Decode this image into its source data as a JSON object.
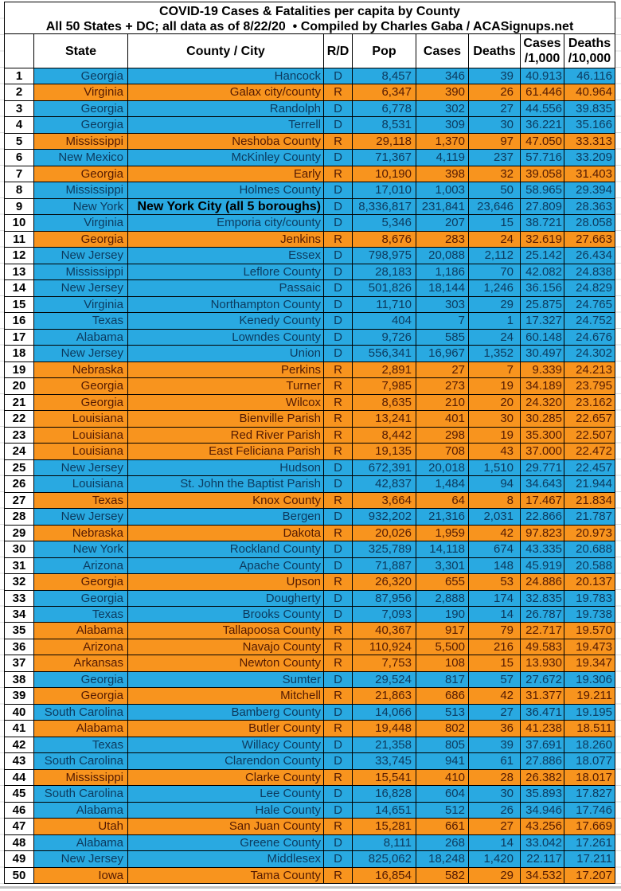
{
  "title": "COVID-19 Cases & Fatalities per capita by County",
  "subtitle": "All 50 States + DC; all data as of 8/22/20  • Compiled by Charles Gaba / ACASignups.net",
  "header": {
    "rank": "",
    "state": "State",
    "county": "County / City",
    "party": "R/D",
    "pop": "Pop",
    "cases": "Cases",
    "deaths": "Deaths",
    "cases_per_1000_line1": "Cases",
    "cases_per_1000_line2": "/1,000",
    "deaths_per_10000_line1": "Deaths",
    "deaths_per_10000_line2": "/10,000"
  },
  "colors": {
    "dem_bg": "#29a9e1",
    "rep_bg": "#f8941e",
    "dem_text": "#0c3a5e",
    "rep_text": "#541a02",
    "grid_line": "#000000",
    "sheet_tick": "#dcdcdc",
    "bottom_edge": "#c2c2c2"
  },
  "chart_data": {
    "type": "table",
    "title": "COVID-19 Cases & Fatalities per capita by County",
    "subtitle": "All 50 States + DC; all data as of 8/22/20  • Compiled by Charles Gaba / ACASignups.net",
    "columns": [
      "",
      "State",
      "County / City",
      "R/D",
      "Pop",
      "Cases",
      "Deaths",
      "Cases /1,000",
      "Deaths /10,000"
    ],
    "row_color_rule": "R/D = D rows are blue, R/D = R rows are orange",
    "rows": [
      {
        "rank": "1",
        "state": "Georgia",
        "county": "Hancock",
        "party": "D",
        "pop": "8,457",
        "cases": "346",
        "deaths": "39",
        "cases_per_1000": "40.913",
        "deaths_per_10000": "46.116"
      },
      {
        "rank": "2",
        "state": "Virginia",
        "county": "Galax city/county",
        "party": "R",
        "pop": "6,347",
        "cases": "390",
        "deaths": "26",
        "cases_per_1000": "61.446",
        "deaths_per_10000": "40.964"
      },
      {
        "rank": "3",
        "state": "Georgia",
        "county": "Randolph",
        "party": "D",
        "pop": "6,778",
        "cases": "302",
        "deaths": "27",
        "cases_per_1000": "44.556",
        "deaths_per_10000": "39.835"
      },
      {
        "rank": "4",
        "state": "Georgia",
        "county": "Terrell",
        "party": "D",
        "pop": "8,531",
        "cases": "309",
        "deaths": "30",
        "cases_per_1000": "36.221",
        "deaths_per_10000": "35.166"
      },
      {
        "rank": "5",
        "state": "Mississippi",
        "county": "Neshoba County",
        "party": "R",
        "pop": "29,118",
        "cases": "1,370",
        "deaths": "97",
        "cases_per_1000": "47.050",
        "deaths_per_10000": "33.313"
      },
      {
        "rank": "6",
        "state": "New Mexico",
        "county": "McKinley County",
        "party": "D",
        "pop": "71,367",
        "cases": "4,119",
        "deaths": "237",
        "cases_per_1000": "57.716",
        "deaths_per_10000": "33.209"
      },
      {
        "rank": "7",
        "state": "Georgia",
        "county": "Early",
        "party": "R",
        "pop": "10,190",
        "cases": "398",
        "deaths": "32",
        "cases_per_1000": "39.058",
        "deaths_per_10000": "31.403"
      },
      {
        "rank": "8",
        "state": "Mississippi",
        "county": "Holmes County",
        "party": "D",
        "pop": "17,010",
        "cases": "1,003",
        "deaths": "50",
        "cases_per_1000": "58.965",
        "deaths_per_10000": "29.394"
      },
      {
        "rank": "9",
        "state": "New York",
        "county": "New York City (all 5 boroughs)",
        "party": "D",
        "pop": "8,336,817",
        "cases": "231,841",
        "deaths": "23,646",
        "cases_per_1000": "27.809",
        "deaths_per_10000": "28.363",
        "county_bold": true
      },
      {
        "rank": "10",
        "state": "Virginia",
        "county": "Emporia city/county",
        "party": "D",
        "pop": "5,346",
        "cases": "207",
        "deaths": "15",
        "cases_per_1000": "38.721",
        "deaths_per_10000": "28.058"
      },
      {
        "rank": "11",
        "state": "Georgia",
        "county": "Jenkins",
        "party": "R",
        "pop": "8,676",
        "cases": "283",
        "deaths": "24",
        "cases_per_1000": "32.619",
        "deaths_per_10000": "27.663"
      },
      {
        "rank": "12",
        "state": "New Jersey",
        "county": "Essex",
        "party": "D",
        "pop": "798,975",
        "cases": "20,088",
        "deaths": "2,112",
        "cases_per_1000": "25.142",
        "deaths_per_10000": "26.434"
      },
      {
        "rank": "13",
        "state": "Mississippi",
        "county": "Leflore County",
        "party": "D",
        "pop": "28,183",
        "cases": "1,186",
        "deaths": "70",
        "cases_per_1000": "42.082",
        "deaths_per_10000": "24.838"
      },
      {
        "rank": "14",
        "state": "New Jersey",
        "county": "Passaic",
        "party": "D",
        "pop": "501,826",
        "cases": "18,144",
        "deaths": "1,246",
        "cases_per_1000": "36.156",
        "deaths_per_10000": "24.829"
      },
      {
        "rank": "15",
        "state": "Virginia",
        "county": "Northampton County",
        "party": "D",
        "pop": "11,710",
        "cases": "303",
        "deaths": "29",
        "cases_per_1000": "25.875",
        "deaths_per_10000": "24.765"
      },
      {
        "rank": "16",
        "state": "Texas",
        "county": "Kenedy County",
        "party": "D",
        "pop": "404",
        "cases": "7",
        "deaths": "1",
        "cases_per_1000": "17.327",
        "deaths_per_10000": "24.752"
      },
      {
        "rank": "17",
        "state": "Alabama",
        "county": "Lowndes County",
        "party": "D",
        "pop": "9,726",
        "cases": "585",
        "deaths": "24",
        "cases_per_1000": "60.148",
        "deaths_per_10000": "24.676"
      },
      {
        "rank": "18",
        "state": "New Jersey",
        "county": "Union",
        "party": "D",
        "pop": "556,341",
        "cases": "16,967",
        "deaths": "1,352",
        "cases_per_1000": "30.497",
        "deaths_per_10000": "24.302"
      },
      {
        "rank": "19",
        "state": "Nebraska",
        "county": "Perkins",
        "party": "R",
        "pop": "2,891",
        "cases": "27",
        "deaths": "7",
        "cases_per_1000": "9.339",
        "deaths_per_10000": "24.213"
      },
      {
        "rank": "20",
        "state": "Georgia",
        "county": "Turner",
        "party": "R",
        "pop": "7,985",
        "cases": "273",
        "deaths": "19",
        "cases_per_1000": "34.189",
        "deaths_per_10000": "23.795"
      },
      {
        "rank": "21",
        "state": "Georgia",
        "county": "Wilcox",
        "party": "R",
        "pop": "8,635",
        "cases": "210",
        "deaths": "20",
        "cases_per_1000": "24.320",
        "deaths_per_10000": "23.162"
      },
      {
        "rank": "22",
        "state": "Louisiana",
        "county": "Bienville Parish",
        "party": "R",
        "pop": "13,241",
        "cases": "401",
        "deaths": "30",
        "cases_per_1000": "30.285",
        "deaths_per_10000": "22.657"
      },
      {
        "rank": "23",
        "state": "Louisiana",
        "county": "Red River Parish",
        "party": "R",
        "pop": "8,442",
        "cases": "298",
        "deaths": "19",
        "cases_per_1000": "35.300",
        "deaths_per_10000": "22.507"
      },
      {
        "rank": "24",
        "state": "Louisiana",
        "county": "East Feliciana Parish",
        "party": "R",
        "pop": "19,135",
        "cases": "708",
        "deaths": "43",
        "cases_per_1000": "37.000",
        "deaths_per_10000": "22.472"
      },
      {
        "rank": "25",
        "state": "New Jersey",
        "county": "Hudson",
        "party": "D",
        "pop": "672,391",
        "cases": "20,018",
        "deaths": "1,510",
        "cases_per_1000": "29.771",
        "deaths_per_10000": "22.457"
      },
      {
        "rank": "26",
        "state": "Louisiana",
        "county": "St. John the Baptist Parish",
        "party": "D",
        "pop": "42,837",
        "cases": "1,484",
        "deaths": "94",
        "cases_per_1000": "34.643",
        "deaths_per_10000": "21.944"
      },
      {
        "rank": "27",
        "state": "Texas",
        "county": "Knox County",
        "party": "R",
        "pop": "3,664",
        "cases": "64",
        "deaths": "8",
        "cases_per_1000": "17.467",
        "deaths_per_10000": "21.834"
      },
      {
        "rank": "28",
        "state": "New Jersey",
        "county": "Bergen",
        "party": "D",
        "pop": "932,202",
        "cases": "21,316",
        "deaths": "2,031",
        "cases_per_1000": "22.866",
        "deaths_per_10000": "21.787"
      },
      {
        "rank": "29",
        "state": "Nebraska",
        "county": "Dakota",
        "party": "R",
        "pop": "20,026",
        "cases": "1,959",
        "deaths": "42",
        "cases_per_1000": "97.823",
        "deaths_per_10000": "20.973"
      },
      {
        "rank": "30",
        "state": "New York",
        "county": "Rockland County",
        "party": "D",
        "pop": "325,789",
        "cases": "14,118",
        "deaths": "674",
        "cases_per_1000": "43.335",
        "deaths_per_10000": "20.688"
      },
      {
        "rank": "31",
        "state": "Arizona",
        "county": "Apache County",
        "party": "D",
        "pop": "71,887",
        "cases": "3,301",
        "deaths": "148",
        "cases_per_1000": "45.919",
        "deaths_per_10000": "20.588"
      },
      {
        "rank": "32",
        "state": "Georgia",
        "county": "Upson",
        "party": "R",
        "pop": "26,320",
        "cases": "655",
        "deaths": "53",
        "cases_per_1000": "24.886",
        "deaths_per_10000": "20.137"
      },
      {
        "rank": "33",
        "state": "Georgia",
        "county": "Dougherty",
        "party": "D",
        "pop": "87,956",
        "cases": "2,888",
        "deaths": "174",
        "cases_per_1000": "32.835",
        "deaths_per_10000": "19.783"
      },
      {
        "rank": "34",
        "state": "Texas",
        "county": "Brooks County",
        "party": "D",
        "pop": "7,093",
        "cases": "190",
        "deaths": "14",
        "cases_per_1000": "26.787",
        "deaths_per_10000": "19.738"
      },
      {
        "rank": "35",
        "state": "Alabama",
        "county": "Tallapoosa County",
        "party": "R",
        "pop": "40,367",
        "cases": "917",
        "deaths": "79",
        "cases_per_1000": "22.717",
        "deaths_per_10000": "19.570"
      },
      {
        "rank": "36",
        "state": "Arizona",
        "county": "Navajo County",
        "party": "R",
        "pop": "110,924",
        "cases": "5,500",
        "deaths": "216",
        "cases_per_1000": "49.583",
        "deaths_per_10000": "19.473"
      },
      {
        "rank": "37",
        "state": "Arkansas",
        "county": "Newton County",
        "party": "R",
        "pop": "7,753",
        "cases": "108",
        "deaths": "15",
        "cases_per_1000": "13.930",
        "deaths_per_10000": "19.347"
      },
      {
        "rank": "38",
        "state": "Georgia",
        "county": "Sumter",
        "party": "D",
        "pop": "29,524",
        "cases": "817",
        "deaths": "57",
        "cases_per_1000": "27.672",
        "deaths_per_10000": "19.306"
      },
      {
        "rank": "39",
        "state": "Georgia",
        "county": "Mitchell",
        "party": "R",
        "pop": "21,863",
        "cases": "686",
        "deaths": "42",
        "cases_per_1000": "31.377",
        "deaths_per_10000": "19.211"
      },
      {
        "rank": "40",
        "state": "South Carolina",
        "county": "Bamberg County",
        "party": "D",
        "pop": "14,066",
        "cases": "513",
        "deaths": "27",
        "cases_per_1000": "36.471",
        "deaths_per_10000": "19.195"
      },
      {
        "rank": "41",
        "state": "Alabama",
        "county": "Butler County",
        "party": "R",
        "pop": "19,448",
        "cases": "802",
        "deaths": "36",
        "cases_per_1000": "41.238",
        "deaths_per_10000": "18.511"
      },
      {
        "rank": "42",
        "state": "Texas",
        "county": "Willacy County",
        "party": "D",
        "pop": "21,358",
        "cases": "805",
        "deaths": "39",
        "cases_per_1000": "37.691",
        "deaths_per_10000": "18.260"
      },
      {
        "rank": "43",
        "state": "South Carolina",
        "county": "Clarendon County",
        "party": "D",
        "pop": "33,745",
        "cases": "941",
        "deaths": "61",
        "cases_per_1000": "27.886",
        "deaths_per_10000": "18.077"
      },
      {
        "rank": "44",
        "state": "Mississippi",
        "county": "Clarke County",
        "party": "R",
        "pop": "15,541",
        "cases": "410",
        "deaths": "28",
        "cases_per_1000": "26.382",
        "deaths_per_10000": "18.017"
      },
      {
        "rank": "45",
        "state": "South Carolina",
        "county": "Lee County",
        "party": "D",
        "pop": "16,828",
        "cases": "604",
        "deaths": "30",
        "cases_per_1000": "35.893",
        "deaths_per_10000": "17.827"
      },
      {
        "rank": "46",
        "state": "Alabama",
        "county": "Hale County",
        "party": "D",
        "pop": "14,651",
        "cases": "512",
        "deaths": "26",
        "cases_per_1000": "34.946",
        "deaths_per_10000": "17.746"
      },
      {
        "rank": "47",
        "state": "Utah",
        "county": "San Juan County",
        "party": "R",
        "pop": "15,281",
        "cases": "661",
        "deaths": "27",
        "cases_per_1000": "43.256",
        "deaths_per_10000": "17.669"
      },
      {
        "rank": "48",
        "state": "Alabama",
        "county": "Greene County",
        "party": "D",
        "pop": "8,111",
        "cases": "268",
        "deaths": "14",
        "cases_per_1000": "33.042",
        "deaths_per_10000": "17.261"
      },
      {
        "rank": "49",
        "state": "New Jersey",
        "county": "Middlesex",
        "party": "D",
        "pop": "825,062",
        "cases": "18,248",
        "deaths": "1,420",
        "cases_per_1000": "22.117",
        "deaths_per_10000": "17.211"
      },
      {
        "rank": "50",
        "state": "Iowa",
        "county": "Tama County",
        "party": "R",
        "pop": "16,854",
        "cases": "582",
        "deaths": "29",
        "cases_per_1000": "34.532",
        "deaths_per_10000": "17.207"
      }
    ]
  }
}
